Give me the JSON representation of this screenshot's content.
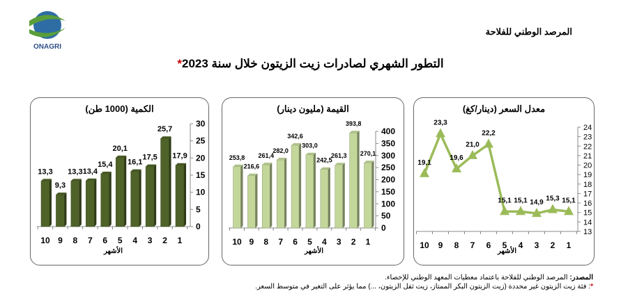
{
  "header": {
    "logo_text": "ONAGRI",
    "organization": "المرصد الوطني للفلاحة"
  },
  "title": {
    "text": "التطور الشهري لصادرات زيت الزيتون خلال سنة 2023",
    "asterisk": "*"
  },
  "chart_data": [
    {
      "type": "bar",
      "title": "الكمية (1000 طن)",
      "xlabel": "الأشهر",
      "categories": [
        "1",
        "2",
        "3",
        "4",
        "5",
        "6",
        "7",
        "8",
        "9",
        "10"
      ],
      "values": [
        17.9,
        25.7,
        17.5,
        16.1,
        20.1,
        15.4,
        13.4,
        13.3,
        9.3,
        13.3
      ],
      "value_labels": [
        "17,9",
        "25,7",
        "17,5",
        "16,1",
        "20,1",
        "15,4",
        "13,4",
        "13,3",
        "9,3",
        "13,3"
      ],
      "ylim": [
        0,
        30
      ],
      "yticks": [
        0,
        5,
        10,
        15,
        20,
        25,
        30
      ],
      "color": "#4f6228",
      "axis_side": "right",
      "x_order": "right-to-left"
    },
    {
      "type": "bar",
      "title": "القيمة (مليون دينار)",
      "xlabel": "الأشهر",
      "categories": [
        "1",
        "2",
        "3",
        "4",
        "5",
        "6",
        "7",
        "8",
        "9",
        "10"
      ],
      "values": [
        270.1,
        393.8,
        261.3,
        242.5,
        303.0,
        342.6,
        282.0,
        261.4,
        216.6,
        253.8
      ],
      "value_labels": [
        "270,1",
        "393,8",
        "261,3",
        "242,5",
        "303,0",
        "342,6",
        "282,0",
        "261,4",
        "216,6",
        "253,8"
      ],
      "ylim": [
        0,
        400
      ],
      "yticks": [
        0,
        50,
        100,
        150,
        200,
        250,
        300,
        350,
        400
      ],
      "color": "#c4d79b",
      "axis_side": "right",
      "x_order": "right-to-left"
    },
    {
      "type": "line",
      "title": "معدل السعر (دينار/كغ)",
      "xlabel": "الأشهر",
      "categories": [
        "1",
        "2",
        "3",
        "4",
        "5",
        "6",
        "7",
        "8",
        "9",
        "10"
      ],
      "values": [
        15.1,
        15.3,
        14.9,
        15.1,
        15.1,
        22.2,
        21.0,
        19.6,
        23.3,
        19.1
      ],
      "value_labels": [
        "15,1",
        "15,3",
        "14,9",
        "15,1",
        "15,1",
        "22,2",
        "21,0",
        "19,6",
        "23,3",
        "19,1"
      ],
      "ylim": [
        13,
        24
      ],
      "yticks": [
        13,
        14,
        15,
        16,
        17,
        18,
        19,
        20,
        21,
        22,
        23,
        24
      ],
      "color": "#9bbb59",
      "marker": "triangle",
      "axis_side": "right",
      "x_order": "right-to-left"
    }
  ],
  "notes": {
    "source_label": "المصدر:",
    "source_text": " المرصد الوطني للفلاحة باعتماد معطيات المعهد الوطني للإحصاء.",
    "footnote_mark": "*",
    "footnote_text": ": فئة زيت الزيتون غير محددة (زيت الزيتون البكر الممتاز، زيت ثفل الزيتون، ...) مما يؤثر على التغير في متوسط السعر."
  }
}
